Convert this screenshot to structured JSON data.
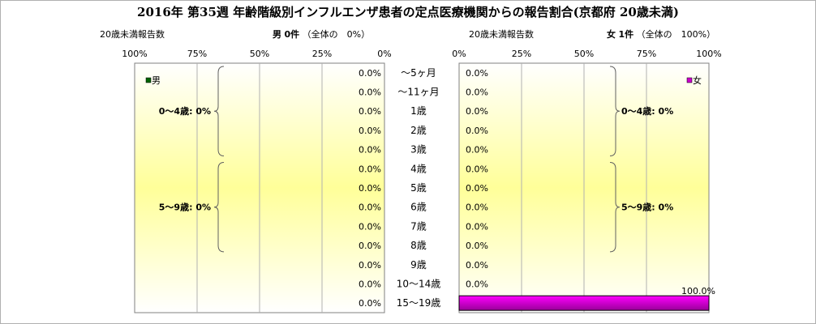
{
  "title": "2016年 第35週 年齢階級別インフルエンザ患者の定点医療機関からの報告割合(京都府 20歳未満)",
  "male": {
    "count_caption": "20歳未満報告数",
    "sex_label": "男",
    "count_value": "0件",
    "share_text": "（全体の　0%）",
    "legend": "男",
    "color": "#006400",
    "axis_ticks": [
      "100%",
      "75%",
      "50%",
      "25%",
      "0%"
    ],
    "groups": [
      {
        "label": "0～4歳: 0%",
        "from": 0,
        "to": 5
      },
      {
        "label": "5～9歳: 0%",
        "from": 5,
        "to": 10
      }
    ]
  },
  "female": {
    "count_caption": "20歳未満報告数",
    "sex_label": "女",
    "count_value": "1件",
    "share_text": "（全体の　100%）",
    "legend": "女",
    "color": "#cc00cc",
    "axis_ticks": [
      "0%",
      "25%",
      "50%",
      "75%",
      "100%"
    ],
    "groups": [
      {
        "label": "0～4歳: 0%",
        "from": 0,
        "to": 5
      },
      {
        "label": "5～9歳: 0%",
        "from": 5,
        "to": 10
      }
    ]
  },
  "chart_data": {
    "type": "bar",
    "orientation": "horizontal-pyramid",
    "categories": [
      "～5ヶ月",
      "～11ヶ月",
      "1歳",
      "2歳",
      "3歳",
      "4歳",
      "5歳",
      "6歳",
      "7歳",
      "8歳",
      "9歳",
      "10～14歳",
      "15～19歳"
    ],
    "series": [
      {
        "name": "男",
        "values": [
          0,
          0,
          0,
          0,
          0,
          0,
          0,
          0,
          0,
          0,
          0,
          0,
          0
        ],
        "labels": [
          "0.0%",
          "0.0%",
          "0.0%",
          "0.0%",
          "0.0%",
          "0.0%",
          "0.0%",
          "0.0%",
          "0.0%",
          "0.0%",
          "0.0%",
          "0.0%",
          "0.0%"
        ]
      },
      {
        "name": "女",
        "values": [
          0,
          0,
          0,
          0,
          0,
          0,
          0,
          0,
          0,
          0,
          0,
          0,
          100
        ],
        "labels": [
          "0.0%",
          "0.0%",
          "0.0%",
          "0.0%",
          "0.0%",
          "0.0%",
          "0.0%",
          "0.0%",
          "0.0%",
          "0.0%",
          "0.0%",
          "0.0%",
          "100.0%"
        ]
      }
    ],
    "xlim": [
      0,
      100
    ],
    "grid": true,
    "legend_position": "top"
  }
}
